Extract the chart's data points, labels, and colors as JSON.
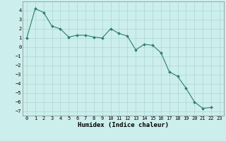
{
  "x": [
    0,
    1,
    2,
    3,
    4,
    5,
    6,
    7,
    8,
    9,
    10,
    11,
    12,
    13,
    14,
    15,
    16,
    17,
    18,
    19,
    20,
    21,
    22,
    23
  ],
  "y": [
    1.0,
    4.2,
    3.8,
    2.3,
    2.0,
    1.1,
    1.3,
    1.3,
    1.1,
    1.0,
    2.0,
    1.5,
    1.2,
    -0.3,
    0.3,
    0.2,
    -0.6,
    -2.7,
    -3.2,
    -4.5,
    -6.0,
    -6.7,
    -6.6,
    null
  ],
  "line_color": "#2e7d6e",
  "marker": "D",
  "markersize": 2.0,
  "linewidth": 0.8,
  "background_color": "#cceeed",
  "grid_color": "#aad8d4",
  "xlabel": "Humidex (Indice chaleur)",
  "ylabel": "",
  "xlim": [
    -0.5,
    23.5
  ],
  "ylim": [
    -7.5,
    5.0
  ],
  "yticks": [
    4,
    3,
    2,
    1,
    0,
    -1,
    -2,
    -3,
    -4,
    -5,
    -6,
    -7
  ],
  "xticks": [
    0,
    1,
    2,
    3,
    4,
    5,
    6,
    7,
    8,
    9,
    10,
    11,
    12,
    13,
    14,
    15,
    16,
    17,
    18,
    19,
    20,
    21,
    22,
    23
  ],
  "tick_fontsize": 5.0,
  "xlabel_fontsize": 6.5
}
